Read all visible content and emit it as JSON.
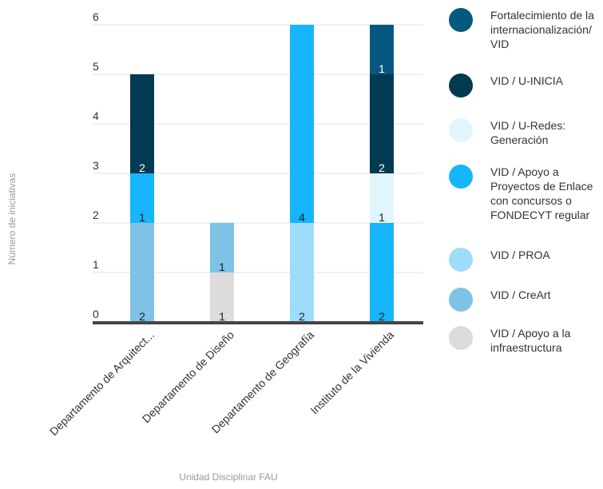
{
  "chart_data": {
    "type": "bar",
    "stacked": true,
    "categories": [
      "Departamento de Arquitect...",
      "Departamento de Diseño",
      "Departamento de Geografía",
      "Instituto de la Vivienda"
    ],
    "xlabel": "Unidad Disciplinar FAU",
    "ylabel": "Número de iniciativas",
    "ylim": [
      0,
      6
    ],
    "yticks": [
      "0",
      "1",
      "2",
      "3",
      "4",
      "5",
      "6"
    ],
    "grid": true,
    "legend_position": "right",
    "series": [
      {
        "name": "VID / Apoyo a la infraestructura",
        "color": "#dddbdc",
        "values": [
          0,
          1,
          0,
          0
        ]
      },
      {
        "name": "VID / CreArt",
        "color": "#7ec2e6",
        "values": [
          2,
          1,
          0,
          0
        ]
      },
      {
        "name": "VID / PROA",
        "color": "#9ddcfb",
        "values": [
          0,
          0,
          2,
          0
        ]
      },
      {
        "name": "VID / Apoyo a Proyectos de Enlace con concursos o FONDECYT regular",
        "color": "#17b5fb",
        "values": [
          1,
          0,
          4,
          2
        ]
      },
      {
        "name": "VID / U-Redes: Generación",
        "color": "#e3f5fc",
        "values": [
          0,
          0,
          0,
          1
        ]
      },
      {
        "name": "VID / U-INICIA",
        "color": "#023a52",
        "values": [
          2,
          0,
          0,
          2
        ]
      },
      {
        "name": "Fortalecimiento de la internacionalización/ VID",
        "color": "#065880",
        "values": [
          0,
          0,
          0,
          1
        ]
      }
    ],
    "legend": [
      {
        "label": "Fortalecimiento de la internacionalización/ VID",
        "color": "#065880"
      },
      {
        "label": "VID / U-INICIA",
        "color": "#023a52"
      },
      {
        "label": "VID / U-Redes: Generación",
        "color": "#e3f5fc"
      },
      {
        "label": "VID / Apoyo a Proyectos de Enlace con concursos o FONDECYT regular",
        "color": "#17b5fb"
      },
      {
        "label": "VID / PROA",
        "color": "#9ddcfb"
      },
      {
        "label": "VID / CreArt",
        "color": "#7ec2e6"
      },
      {
        "label": "VID / Apoyo a la infraestructura",
        "color": "#dddbdc"
      }
    ]
  }
}
